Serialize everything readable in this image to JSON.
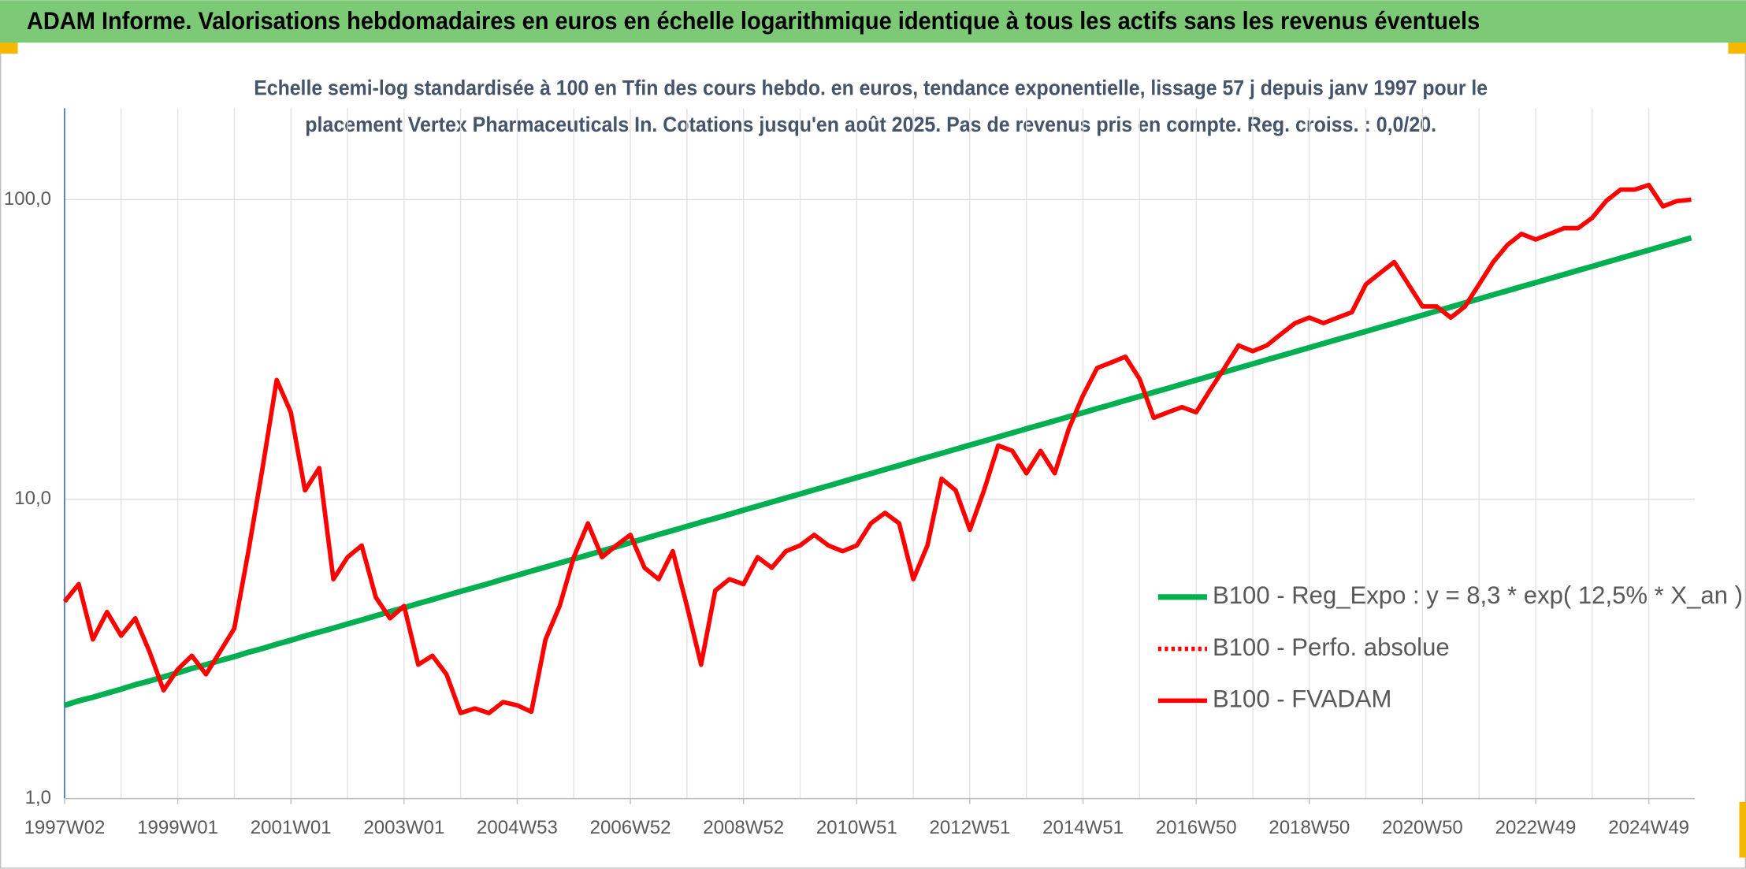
{
  "chart_data": {
    "type": "line",
    "title": "ADAM Informe. Valorisations hebdomadaires en euros en échelle logarithmique identique à tous les actifs sans les revenus éventuels",
    "subtitle": [
      "Echelle semi-log standardisée à 100 en Tfin des cours hebdo. en euros, tendance exponentielle, lissage 57 j depuis janv 1997 pour le",
      "placement Vertex Pharmaceuticals In. Cotations jusqu'en août 2025. Pas de revenus pris en compte. Reg. croiss. : 0,0/20."
    ],
    "categories": [
      "1997W02",
      null,
      null,
      null,
      null,
      null,
      null,
      null,
      "1999W01",
      null,
      null,
      null,
      null,
      null,
      null,
      null,
      "2001W01",
      null,
      null,
      null,
      null,
      null,
      null,
      null,
      "2003W01",
      null,
      null,
      null,
      null,
      null,
      null,
      null,
      "2004W53",
      null,
      null,
      null,
      null,
      null,
      null,
      null,
      "2006W52",
      null,
      null,
      null,
      null,
      null,
      null,
      null,
      "2008W52",
      null,
      null,
      null,
      null,
      null,
      null,
      null,
      "2010W51",
      null,
      null,
      null,
      null,
      null,
      null,
      null,
      "2012W51",
      null,
      null,
      null,
      null,
      null,
      null,
      null,
      "2014W51",
      null,
      null,
      null,
      null,
      null,
      null,
      null,
      "2016W50",
      null,
      null,
      null,
      null,
      null,
      null,
      null,
      "2018W50",
      null,
      null,
      null,
      null,
      null,
      null,
      null,
      "2020W50",
      null,
      null,
      null,
      null,
      null,
      null,
      null,
      "2022W49",
      null,
      null,
      null,
      null,
      null,
      null,
      null,
      "2024W49",
      null,
      null,
      null
    ],
    "log_scale": true,
    "ylim": [
      1,
      202
    ],
    "yticks": [
      {
        "value": 1,
        "label": "1,0"
      },
      {
        "value": 10,
        "label": "10,0"
      },
      {
        "value": 100,
        "label": "100,0"
      }
    ],
    "grid": true,
    "legend": "right",
    "series": [
      {
        "name": "B100 - Reg_Expo : y = 8,3 * exp( 12,5% *  X_an )",
        "color": "#00b050",
        "style": "solid",
        "values": [
          2.05,
          2.12,
          2.18,
          2.25,
          2.32,
          2.4,
          2.47,
          2.55,
          2.63,
          2.72,
          2.8,
          2.89,
          2.98,
          3.08,
          3.17,
          3.28,
          3.38,
          3.49,
          3.6,
          3.71,
          3.83,
          3.95,
          4.08,
          4.21,
          4.34,
          4.48,
          4.62,
          4.77,
          4.92,
          5.07,
          5.23,
          5.4,
          5.57,
          5.75,
          5.93,
          6.12,
          6.31,
          6.51,
          6.72,
          6.93,
          7.16,
          7.38,
          7.62,
          7.86,
          8.11,
          8.37,
          8.63,
          8.9,
          9.19,
          9.48,
          9.78,
          10.09,
          10.41,
          10.74,
          11.08,
          11.43,
          11.8,
          12.17,
          12.56,
          12.96,
          13.37,
          13.8,
          14.23,
          14.68,
          15.15,
          15.63,
          16.13,
          16.64,
          17.17,
          17.71,
          18.27,
          18.85,
          19.45,
          20.07,
          20.7,
          21.36,
          22.04,
          22.74,
          23.46,
          24.21,
          24.97,
          25.76,
          26.58,
          27.42,
          28.29,
          29.19,
          30.12,
          31.08,
          32.07,
          33.09,
          34.14,
          35.22,
          36.34,
          37.49,
          38.68,
          39.91,
          41.17,
          42.48,
          43.83,
          45.22,
          46.65,
          48.13,
          49.66,
          51.24,
          52.87,
          54.55,
          56.28,
          58.07,
          59.91,
          61.81,
          63.77,
          65.8,
          67.88,
          70.03,
          72.26,
          74.55
        ]
      },
      {
        "name": "B100 - Perfo. absolue",
        "color": "#ff0000",
        "style": "dotted",
        "values": [
          4.55,
          5.2,
          3.4,
          4.2,
          3.5,
          4.0,
          3.1,
          2.3,
          2.7,
          3.0,
          2.6,
          3.1,
          3.7,
          6.7,
          12.7,
          25,
          19.5,
          10.7,
          12.7,
          5.4,
          6.4,
          7.0,
          4.7,
          4.0,
          4.4,
          2.8,
          3.0,
          2.6,
          1.93,
          2.0,
          1.93,
          2.1,
          2.05,
          1.95,
          3.4,
          4.4,
          6.4,
          8.3,
          6.4,
          7.0,
          7.6,
          5.9,
          5.4,
          6.7,
          4.4,
          2.8,
          4.95,
          5.4,
          5.2,
          6.4,
          5.9,
          6.7,
          7.0,
          7.6,
          7.0,
          6.7,
          7.0,
          8.3,
          9.0,
          8.3,
          5.4,
          7.0,
          11.7,
          10.7,
          7.9,
          10.7,
          15.1,
          14.5,
          12.2,
          14.5,
          12.2,
          17.2,
          22.2,
          27.4,
          28.6,
          29.9,
          25.2,
          18.7,
          19.5,
          20.3,
          19.5,
          23.2,
          27.4,
          32.6,
          31.2,
          32.6,
          35.6,
          38.7,
          40.4,
          38.7,
          40.4,
          42.1,
          52.2,
          56.9,
          61.9,
          52.2,
          44.0,
          44.0,
          40.4,
          44.0,
          52.2,
          61.9,
          70.6,
          76.9,
          73.6,
          76.9,
          80.3,
          80.3,
          87.0,
          99.2,
          108,
          108,
          112,
          95,
          99,
          100
        ]
      },
      {
        "name": "B100 - FVADAM",
        "color": "#ff0000",
        "style": "solid",
        "values": [
          4.55,
          5.2,
          3.4,
          4.2,
          3.5,
          4.0,
          3.1,
          2.3,
          2.7,
          3.0,
          2.6,
          3.1,
          3.7,
          6.7,
          12.7,
          25,
          19.5,
          10.7,
          12.7,
          5.4,
          6.4,
          7.0,
          4.7,
          4.0,
          4.4,
          2.8,
          3.0,
          2.6,
          1.93,
          2.0,
          1.93,
          2.1,
          2.05,
          1.95,
          3.4,
          4.4,
          6.4,
          8.3,
          6.4,
          7.0,
          7.6,
          5.9,
          5.4,
          6.7,
          4.4,
          2.8,
          4.95,
          5.4,
          5.2,
          6.4,
          5.9,
          6.7,
          7.0,
          7.6,
          7.0,
          6.7,
          7.0,
          8.3,
          9.0,
          8.3,
          5.4,
          7.0,
          11.7,
          10.7,
          7.9,
          10.7,
          15.1,
          14.5,
          12.2,
          14.5,
          12.2,
          17.2,
          22.2,
          27.4,
          28.6,
          29.9,
          25.2,
          18.7,
          19.5,
          20.3,
          19.5,
          23.2,
          27.4,
          32.6,
          31.2,
          32.6,
          35.6,
          38.7,
          40.4,
          38.7,
          40.4,
          42.1,
          52.2,
          56.9,
          61.9,
          52.2,
          44.0,
          44.0,
          40.4,
          44.0,
          52.2,
          61.9,
          70.6,
          76.9,
          73.6,
          76.9,
          80.3,
          80.3,
          87.0,
          99.2,
          108,
          108,
          112,
          95,
          99,
          100
        ]
      }
    ]
  }
}
